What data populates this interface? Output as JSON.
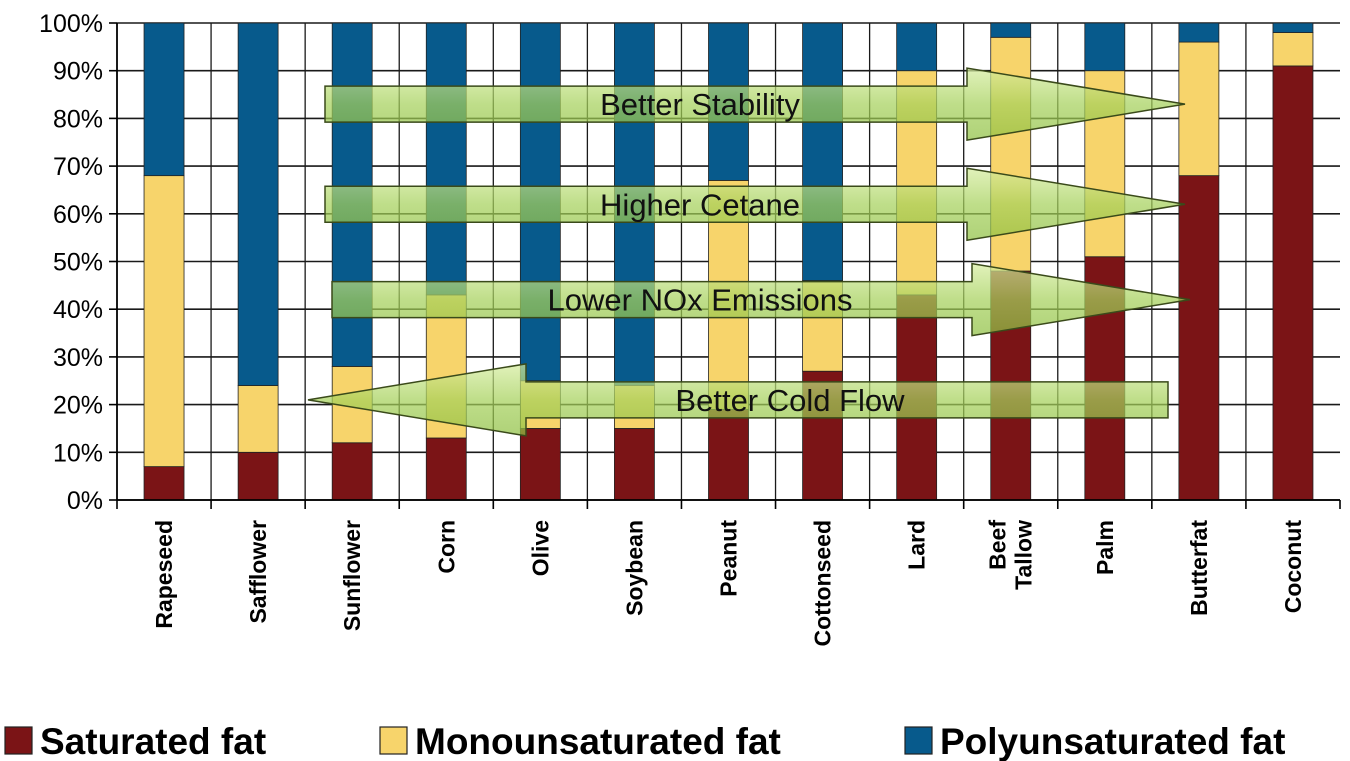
{
  "chart_data": {
    "type": "bar",
    "stacked": true,
    "normalized": true,
    "categories": [
      "Rapeseed",
      "Safflower",
      "Sunflower",
      "Corn",
      "Olive",
      "Soybean",
      "Peanut",
      "Cottonseed",
      "Lard",
      "Beef Tallow",
      "Palm",
      "Butterfat",
      "Coconut"
    ],
    "series": [
      {
        "name": "Saturated fat",
        "color": "#7b1416",
        "values": [
          7,
          10,
          12,
          13,
          15,
          15,
          19,
          27,
          43,
          48,
          51,
          68,
          91
        ]
      },
      {
        "name": "Monounsaturated fat",
        "color": "#f7d46b",
        "values": [
          61,
          14,
          16,
          30,
          10,
          9,
          48,
          19,
          47,
          49,
          39,
          28,
          7
        ]
      },
      {
        "name": "Polyunsaturated fat",
        "color": "#075a8c",
        "values": [
          32,
          76,
          72,
          57,
          75,
          76,
          33,
          54,
          10,
          3,
          10,
          4,
          2
        ]
      }
    ],
    "y_ticks": [
      "0%",
      "10%",
      "20%",
      "30%",
      "40%",
      "50%",
      "60%",
      "70%",
      "80%",
      "90%",
      "100%"
    ],
    "ylim": [
      0,
      100
    ],
    "grid": true,
    "legend_position": "bottom",
    "annotations": [
      {
        "text": "Better Stability",
        "direction": "right",
        "y": 83
      },
      {
        "text": "Higher Cetane",
        "direction": "right",
        "y": 62
      },
      {
        "text": "Lower NOx Emissions",
        "direction": "right",
        "y": 42
      },
      {
        "text": "Better Cold Flow",
        "direction": "left",
        "y": 21
      }
    ]
  }
}
